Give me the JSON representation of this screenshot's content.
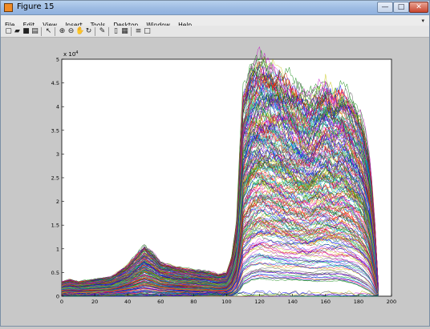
{
  "window": {
    "title": "Figure 15"
  },
  "window_buttons": {
    "minimize": "—",
    "maximize": "□",
    "close": "✕"
  },
  "menu": [
    "File",
    "Edit",
    "View",
    "Insert",
    "Tools",
    "Desktop",
    "Window",
    "Help"
  ],
  "toolbar": {
    "icons": [
      "new-file-icon",
      "open-folder-icon",
      "save-icon",
      "print-icon",
      "pointer-icon",
      "zoom-in-icon",
      "zoom-out-icon",
      "pan-icon",
      "rotate-icon",
      "data-cursor-icon",
      "colorbar-icon",
      "legend-icon",
      "hide-plot-tools-icon",
      "show-plot-tools-icon"
    ]
  },
  "chart_data": {
    "type": "line",
    "title": "",
    "xlabel": "",
    "ylabel": "",
    "exponent_label": "x 10",
    "exponent_power": "4",
    "xlim": [
      0,
      200
    ],
    "ylim": [
      0,
      50000
    ],
    "x_ticks": [
      "0",
      "20",
      "40",
      "60",
      "80",
      "100",
      "120",
      "140",
      "160",
      "180",
      "200"
    ],
    "y_ticks": [
      "0",
      "0.5",
      "1",
      "1.5",
      "2",
      "2.5",
      "3",
      "3.5",
      "4",
      "4.5",
      "5"
    ],
    "num_series_approx": 250,
    "envelope": {
      "x": [
        0,
        5,
        10,
        20,
        30,
        40,
        45,
        50,
        55,
        60,
        70,
        80,
        90,
        95,
        100,
        103,
        106,
        108,
        110,
        115,
        120,
        125,
        130,
        140,
        150,
        155,
        160,
        165,
        170,
        175,
        180,
        183,
        186,
        188,
        190,
        192
      ],
      "max": [
        3000,
        3500,
        3000,
        3500,
        4000,
        6500,
        8500,
        10500,
        9000,
        7000,
        6000,
        5500,
        5000,
        4500,
        5000,
        8000,
        15000,
        30000,
        42000,
        47500,
        49000,
        48000,
        47000,
        44000,
        41000,
        43000,
        44000,
        42000,
        43000,
        41000,
        38000,
        35000,
        30000,
        24000,
        15000,
        2000
      ],
      "min": [
        0,
        0,
        0,
        0,
        0,
        0,
        0,
        0,
        0,
        0,
        0,
        0,
        0,
        0,
        0,
        0,
        500,
        1000,
        2000,
        3000,
        3500,
        3400,
        3200,
        3000,
        3000,
        3000,
        3000,
        3000,
        2800,
        2500,
        2000,
        1500,
        1000,
        500,
        0,
        0
      ]
    },
    "outlier_series_max_y": 1200,
    "color_cycle": [
      "#0000ff",
      "#008000",
      "#ff0000",
      "#00bfbf",
      "#bf00bf",
      "#bfbf00",
      "#404040"
    ]
  }
}
